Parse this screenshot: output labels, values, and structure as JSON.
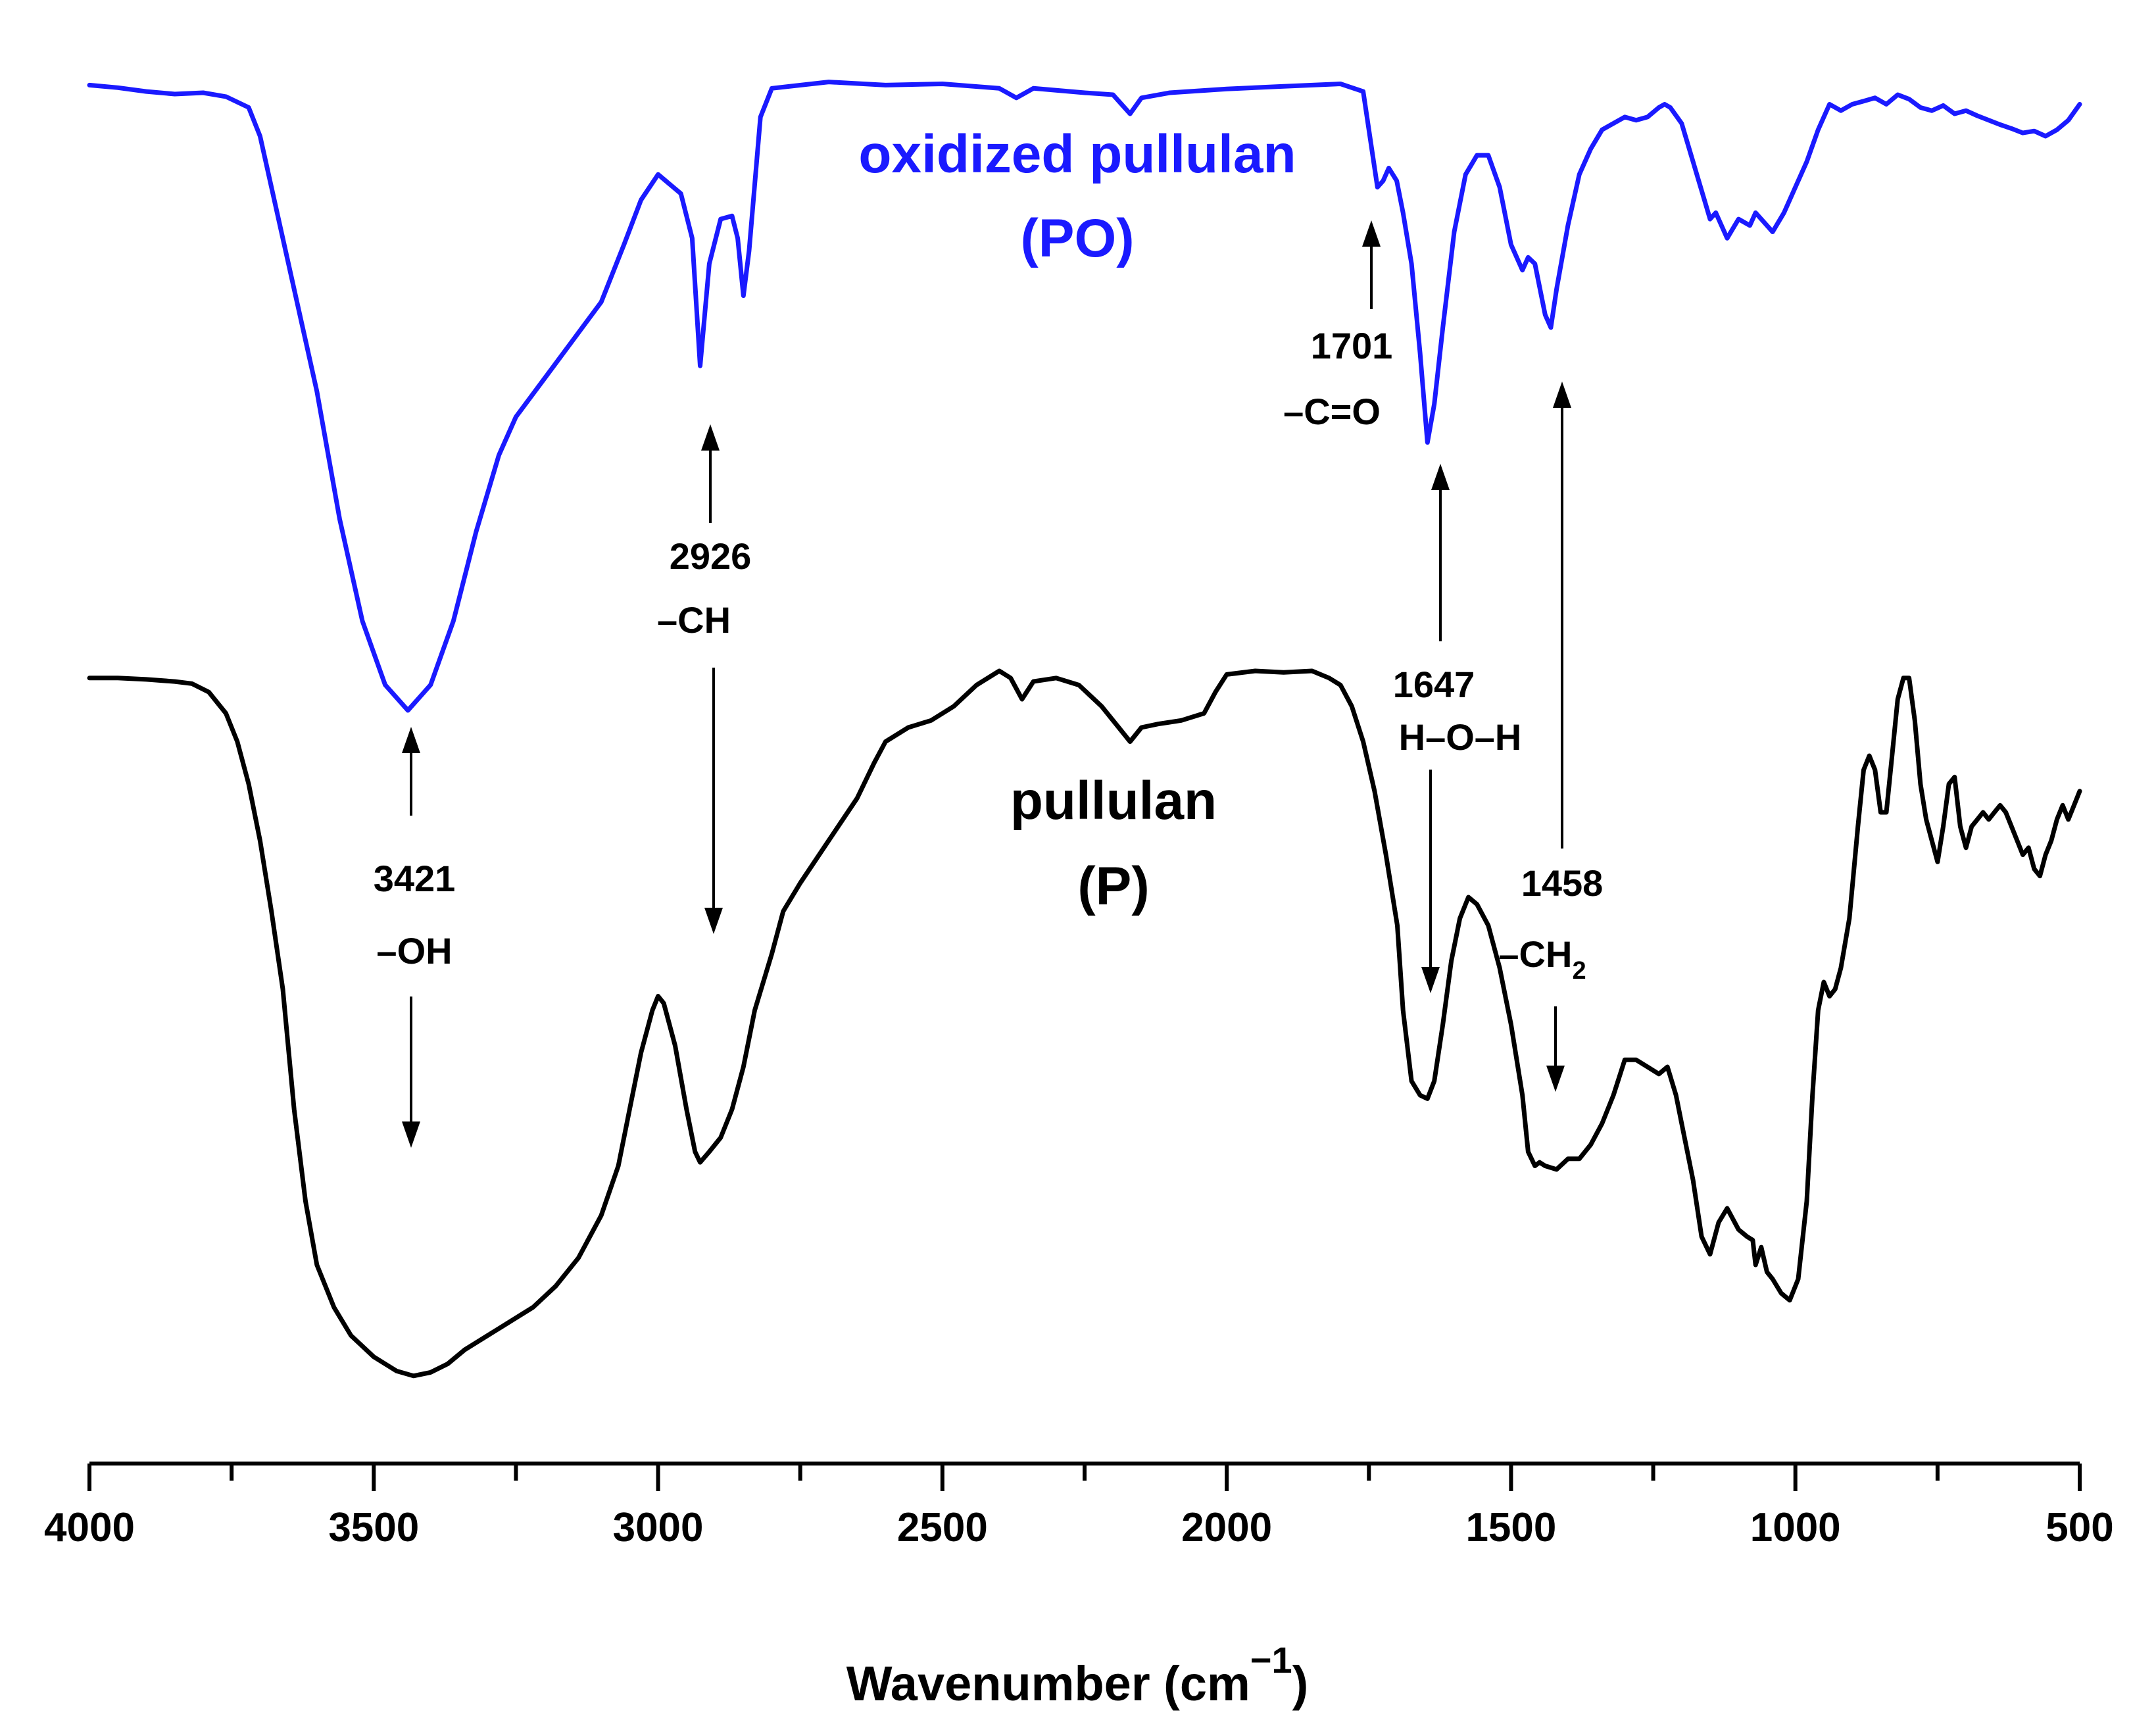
{
  "chart_data": {
    "type": "line",
    "xlabel_main": "Wavenumber (cm",
    "xlabel_sup": "−1",
    "xlabel_close": ")",
    "xlim": [
      4000,
      500
    ],
    "x_reversed": true,
    "ticks_major": [
      4000,
      3500,
      3000,
      2500,
      2000,
      1500,
      1000,
      500
    ],
    "tick_labels": [
      "4000",
      "3500",
      "3000",
      "2500",
      "2000",
      "1500",
      "1000",
      "500"
    ],
    "y_axis_shown": false,
    "grid": false,
    "series": [
      {
        "name_line1": "oxidized pullulan",
        "name_line2": "(PO)",
        "color": "#1a1aff",
        "points": [
          [
            4000,
            0.98
          ],
          [
            3950,
            0.976
          ],
          [
            3900,
            0.97
          ],
          [
            3850,
            0.966
          ],
          [
            3800,
            0.968
          ],
          [
            3760,
            0.962
          ],
          [
            3720,
            0.945
          ],
          [
            3700,
            0.9
          ],
          [
            3680,
            0.82
          ],
          [
            3650,
            0.7
          ],
          [
            3600,
            0.5
          ],
          [
            3560,
            0.3
          ],
          [
            3520,
            0.14
          ],
          [
            3480,
            0.04
          ],
          [
            3440,
            0.0
          ],
          [
            3400,
            0.04
          ],
          [
            3360,
            0.14
          ],
          [
            3320,
            0.28
          ],
          [
            3280,
            0.4
          ],
          [
            3250,
            0.46
          ],
          [
            3200,
            0.52
          ],
          [
            3150,
            0.58
          ],
          [
            3100,
            0.64
          ],
          [
            3060,
            0.73
          ],
          [
            3030,
            0.8
          ],
          [
            3000,
            0.84
          ],
          [
            2960,
            0.81
          ],
          [
            2940,
            0.74
          ],
          [
            2926,
            0.54
          ],
          [
            2910,
            0.7
          ],
          [
            2890,
            0.77
          ],
          [
            2870,
            0.775
          ],
          [
            2860,
            0.74
          ],
          [
            2850,
            0.65
          ],
          [
            2840,
            0.72
          ],
          [
            2820,
            0.93
          ],
          [
            2800,
            0.975
          ],
          [
            2700,
            0.985
          ],
          [
            2600,
            0.98
          ],
          [
            2500,
            0.982
          ],
          [
            2400,
            0.975
          ],
          [
            2370,
            0.96
          ],
          [
            2340,
            0.975
          ],
          [
            2300,
            0.972
          ],
          [
            2250,
            0.968
          ],
          [
            2200,
            0.965
          ],
          [
            2170,
            0.935
          ],
          [
            2150,
            0.96
          ],
          [
            2100,
            0.968
          ],
          [
            2000,
            0.974
          ],
          [
            1900,
            0.978
          ],
          [
            1800,
            0.982
          ],
          [
            1760,
            0.97
          ],
          [
            1745,
            0.88
          ],
          [
            1735,
            0.82
          ],
          [
            1725,
            0.83
          ],
          [
            1715,
            0.85
          ],
          [
            1701,
            0.83
          ],
          [
            1690,
            0.78
          ],
          [
            1675,
            0.7
          ],
          [
            1660,
            0.56
          ],
          [
            1647,
            0.42
          ],
          [
            1635,
            0.48
          ],
          [
            1620,
            0.6
          ],
          [
            1600,
            0.75
          ],
          [
            1580,
            0.84
          ],
          [
            1560,
            0.87
          ],
          [
            1540,
            0.87
          ],
          [
            1520,
            0.82
          ],
          [
            1500,
            0.73
          ],
          [
            1480,
            0.69
          ],
          [
            1470,
            0.71
          ],
          [
            1458,
            0.7
          ],
          [
            1440,
            0.62
          ],
          [
            1430,
            0.6
          ],
          [
            1420,
            0.66
          ],
          [
            1400,
            0.76
          ],
          [
            1380,
            0.84
          ],
          [
            1360,
            0.88
          ],
          [
            1340,
            0.91
          ],
          [
            1320,
            0.92
          ],
          [
            1300,
            0.93
          ],
          [
            1280,
            0.925
          ],
          [
            1260,
            0.93
          ],
          [
            1240,
            0.945
          ],
          [
            1230,
            0.95
          ],
          [
            1220,
            0.945
          ],
          [
            1200,
            0.92
          ],
          [
            1180,
            0.86
          ],
          [
            1160,
            0.8
          ],
          [
            1150,
            0.77
          ],
          [
            1140,
            0.78
          ],
          [
            1120,
            0.74
          ],
          [
            1100,
            0.77
          ],
          [
            1080,
            0.76
          ],
          [
            1070,
            0.78
          ],
          [
            1060,
            0.77
          ],
          [
            1040,
            0.75
          ],
          [
            1020,
            0.78
          ],
          [
            1000,
            0.82
          ],
          [
            980,
            0.86
          ],
          [
            960,
            0.91
          ],
          [
            940,
            0.95
          ],
          [
            920,
            0.94
          ],
          [
            900,
            0.95
          ],
          [
            880,
            0.955
          ],
          [
            860,
            0.96
          ],
          [
            840,
            0.95
          ],
          [
            820,
            0.965
          ],
          [
            800,
            0.958
          ],
          [
            780,
            0.945
          ],
          [
            760,
            0.94
          ],
          [
            740,
            0.948
          ],
          [
            720,
            0.935
          ],
          [
            700,
            0.94
          ],
          [
            680,
            0.932
          ],
          [
            660,
            0.925
          ],
          [
            640,
            0.918
          ],
          [
            620,
            0.912
          ],
          [
            600,
            0.905
          ],
          [
            580,
            0.908
          ],
          [
            560,
            0.9
          ],
          [
            540,
            0.91
          ],
          [
            520,
            0.925
          ],
          [
            500,
            0.95
          ]
        ]
      },
      {
        "name_line1": "pullulan",
        "name_line2": "(P)",
        "color": "#000000",
        "points": [
          [
            4000,
            0.99
          ],
          [
            3950,
            0.99
          ],
          [
            3900,
            0.988
          ],
          [
            3850,
            0.985
          ],
          [
            3820,
            0.982
          ],
          [
            3790,
            0.97
          ],
          [
            3760,
            0.94
          ],
          [
            3740,
            0.9
          ],
          [
            3720,
            0.84
          ],
          [
            3700,
            0.76
          ],
          [
            3680,
            0.66
          ],
          [
            3660,
            0.55
          ],
          [
            3640,
            0.38
          ],
          [
            3620,
            0.25
          ],
          [
            3600,
            0.16
          ],
          [
            3570,
            0.1
          ],
          [
            3540,
            0.06
          ],
          [
            3500,
            0.03
          ],
          [
            3460,
            0.01
          ],
          [
            3430,
            0.003
          ],
          [
            3400,
            0.008
          ],
          [
            3370,
            0.02
          ],
          [
            3340,
            0.04
          ],
          [
            3300,
            0.06
          ],
          [
            3260,
            0.08
          ],
          [
            3220,
            0.1
          ],
          [
            3180,
            0.13
          ],
          [
            3140,
            0.17
          ],
          [
            3100,
            0.23
          ],
          [
            3070,
            0.3
          ],
          [
            3050,
            0.38
          ],
          [
            3030,
            0.46
          ],
          [
            3010,
            0.52
          ],
          [
            3000,
            0.54
          ],
          [
            2990,
            0.53
          ],
          [
            2970,
            0.47
          ],
          [
            2950,
            0.38
          ],
          [
            2935,
            0.32
          ],
          [
            2926,
            0.305
          ],
          [
            2910,
            0.32
          ],
          [
            2890,
            0.34
          ],
          [
            2870,
            0.38
          ],
          [
            2850,
            0.44
          ],
          [
            2830,
            0.52
          ],
          [
            2800,
            0.6
          ],
          [
            2780,
            0.66
          ],
          [
            2750,
            0.7
          ],
          [
            2700,
            0.76
          ],
          [
            2650,
            0.82
          ],
          [
            2620,
            0.87
          ],
          [
            2600,
            0.9
          ],
          [
            2560,
            0.92
          ],
          [
            2520,
            0.93
          ],
          [
            2480,
            0.95
          ],
          [
            2440,
            0.98
          ],
          [
            2400,
            1.0
          ],
          [
            2380,
            0.99
          ],
          [
            2360,
            0.96
          ],
          [
            2340,
            0.985
          ],
          [
            2300,
            0.99
          ],
          [
            2260,
            0.98
          ],
          [
            2220,
            0.95
          ],
          [
            2190,
            0.92
          ],
          [
            2170,
            0.9
          ],
          [
            2150,
            0.92
          ],
          [
            2120,
            0.925
          ],
          [
            2080,
            0.93
          ],
          [
            2040,
            0.94
          ],
          [
            2020,
            0.97
          ],
          [
            2000,
            0.995
          ],
          [
            1950,
            1.0
          ],
          [
            1900,
            0.998
          ],
          [
            1850,
            1.0
          ],
          [
            1820,
            0.99
          ],
          [
            1800,
            0.98
          ],
          [
            1780,
            0.95
          ],
          [
            1760,
            0.9
          ],
          [
            1740,
            0.83
          ],
          [
            1720,
            0.74
          ],
          [
            1700,
            0.64
          ],
          [
            1690,
            0.52
          ],
          [
            1675,
            0.42
          ],
          [
            1660,
            0.4
          ],
          [
            1647,
            0.395
          ],
          [
            1635,
            0.42
          ],
          [
            1620,
            0.5
          ],
          [
            1605,
            0.59
          ],
          [
            1590,
            0.65
          ],
          [
            1575,
            0.68
          ],
          [
            1560,
            0.67
          ],
          [
            1540,
            0.64
          ],
          [
            1520,
            0.58
          ],
          [
            1500,
            0.5
          ],
          [
            1480,
            0.4
          ],
          [
            1470,
            0.32
          ],
          [
            1458,
            0.3
          ],
          [
            1450,
            0.305
          ],
          [
            1440,
            0.3
          ],
          [
            1420,
            0.295
          ],
          [
            1400,
            0.31
          ],
          [
            1380,
            0.31
          ],
          [
            1360,
            0.33
          ],
          [
            1340,
            0.36
          ],
          [
            1320,
            0.4
          ],
          [
            1300,
            0.45
          ],
          [
            1280,
            0.45
          ],
          [
            1260,
            0.44
          ],
          [
            1240,
            0.43
          ],
          [
            1225,
            0.44
          ],
          [
            1210,
            0.4
          ],
          [
            1200,
            0.36
          ],
          [
            1180,
            0.28
          ],
          [
            1165,
            0.2
          ],
          [
            1150,
            0.175
          ],
          [
            1135,
            0.22
          ],
          [
            1120,
            0.24
          ],
          [
            1100,
            0.21
          ],
          [
            1085,
            0.2
          ],
          [
            1075,
            0.195
          ],
          [
            1070,
            0.16
          ],
          [
            1060,
            0.185
          ],
          [
            1050,
            0.15
          ],
          [
            1040,
            0.14
          ],
          [
            1025,
            0.12
          ],
          [
            1010,
            0.11
          ],
          [
            995,
            0.14
          ],
          [
            980,
            0.25
          ],
          [
            970,
            0.4
          ],
          [
            960,
            0.52
          ],
          [
            950,
            0.56
          ],
          [
            940,
            0.54
          ],
          [
            930,
            0.55
          ],
          [
            920,
            0.58
          ],
          [
            905,
            0.65
          ],
          [
            890,
            0.78
          ],
          [
            880,
            0.86
          ],
          [
            870,
            0.88
          ],
          [
            860,
            0.86
          ],
          [
            850,
            0.8
          ],
          [
            840,
            0.8
          ],
          [
            830,
            0.88
          ],
          [
            820,
            0.96
          ],
          [
            810,
            0.99
          ],
          [
            800,
            0.99
          ],
          [
            790,
            0.93
          ],
          [
            780,
            0.84
          ],
          [
            770,
            0.79
          ],
          [
            760,
            0.76
          ],
          [
            750,
            0.73
          ],
          [
            740,
            0.78
          ],
          [
            730,
            0.84
          ],
          [
            720,
            0.85
          ],
          [
            710,
            0.78
          ],
          [
            700,
            0.75
          ],
          [
            690,
            0.78
          ],
          [
            680,
            0.79
          ],
          [
            670,
            0.8
          ],
          [
            660,
            0.79
          ],
          [
            650,
            0.8
          ],
          [
            640,
            0.81
          ],
          [
            630,
            0.8
          ],
          [
            620,
            0.78
          ],
          [
            610,
            0.76
          ],
          [
            600,
            0.74
          ],
          [
            590,
            0.75
          ],
          [
            580,
            0.72
          ],
          [
            570,
            0.71
          ],
          [
            560,
            0.74
          ],
          [
            550,
            0.76
          ],
          [
            540,
            0.79
          ],
          [
            530,
            0.81
          ],
          [
            520,
            0.79
          ],
          [
            510,
            0.81
          ],
          [
            500,
            0.83
          ]
        ]
      }
    ],
    "annotations": [
      {
        "wavenumber": 3421,
        "value": "3421",
        "group": "–OH",
        "sub": ""
      },
      {
        "wavenumber": 2926,
        "value": "2926",
        "group": "–CH",
        "sub": ""
      },
      {
        "wavenumber": 1701,
        "value": "1701",
        "group": "–C=O",
        "sub": ""
      },
      {
        "wavenumber": 1647,
        "value": "1647",
        "group": "H–O–H",
        "sub": ""
      },
      {
        "wavenumber": 1458,
        "value": "1458",
        "group": "–CH",
        "sub": "2"
      }
    ]
  }
}
